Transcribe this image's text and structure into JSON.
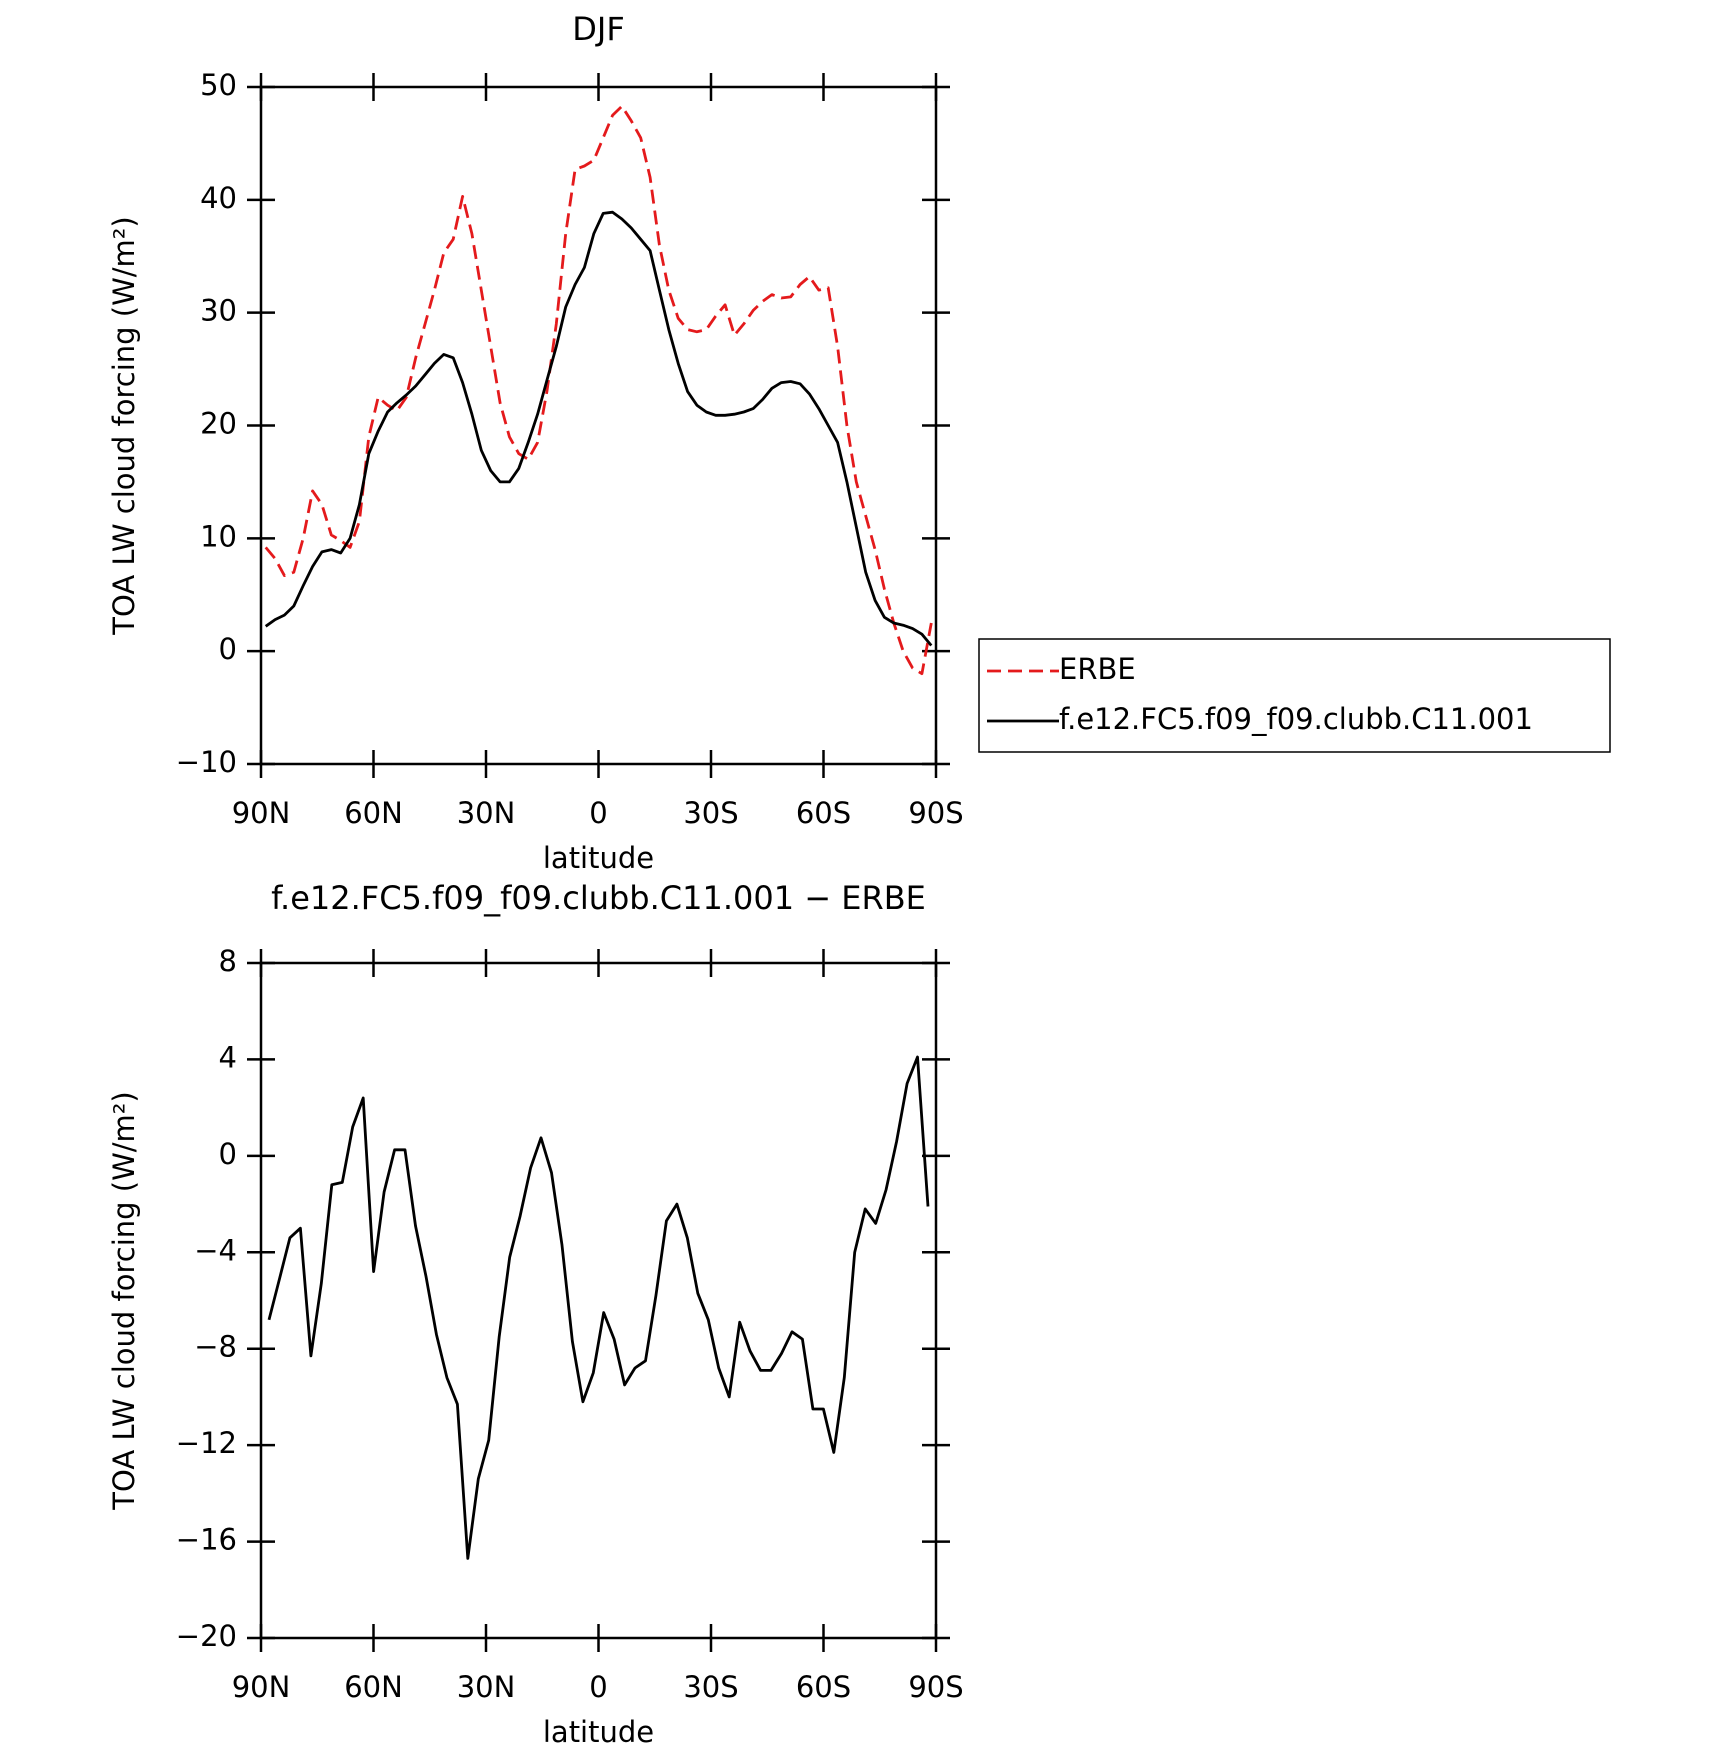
{
  "chart_data": [
    {
      "type": "line",
      "title": "DJF",
      "xlabel": "latitude",
      "ylabel": "TOA LW cloud forcing (W/m²)",
      "xlim": [
        90,
        -90
      ],
      "xticks": [
        {
          "value": 90,
          "label": "90N"
        },
        {
          "value": 60,
          "label": "60N"
        },
        {
          "value": 30,
          "label": "30N"
        },
        0,
        {
          "value": -30,
          "label": "30S"
        },
        {
          "value": -60,
          "label": "60S"
        },
        {
          "value": -90,
          "label": "90S"
        }
      ],
      "ylim": [
        -10,
        50
      ],
      "yticks": [
        {
          "value": -10,
          "label": "−10"
        },
        0,
        10,
        20,
        30,
        40,
        50
      ],
      "legend_position": "right",
      "x": [
        88.75,
        86.25,
        83.75,
        81.25,
        78.75,
        76.25,
        73.75,
        71.25,
        68.75,
        66.25,
        63.75,
        61.25,
        58.75,
        56.25,
        53.75,
        51.25,
        48.75,
        46.25,
        43.75,
        41.25,
        38.75,
        36.25,
        33.75,
        31.25,
        28.75,
        26.25,
        23.75,
        21.25,
        18.75,
        16.25,
        13.75,
        11.25,
        8.75,
        6.25,
        3.75,
        1.25,
        -1.25,
        -3.75,
        -6.25,
        -8.75,
        -11.25,
        -13.75,
        -16.25,
        -18.75,
        -21.25,
        -23.75,
        -26.25,
        -28.75,
        -31.25,
        -33.75,
        -36.25,
        -38.75,
        -41.25,
        -43.75,
        -46.25,
        -48.75,
        -51.25,
        -53.75,
        -56.25,
        -58.75,
        -61.25,
        -63.75,
        -66.25,
        -68.75,
        -71.25,
        -73.75,
        -76.25,
        -78.75,
        -81.25,
        -83.75,
        -86.25,
        -88.75
      ],
      "series": [
        {
          "name": "ERBE",
          "color": "#e41a1c",
          "dash": true,
          "values": [
            9.2,
            8.2,
            6.7,
            7.0,
            10,
            14.2,
            13.0,
            10.3,
            9.8,
            9.2,
            11.5,
            19,
            22.5,
            21.8,
            21.3,
            22.5,
            26,
            29,
            32,
            35.3,
            36.5,
            40.3,
            37,
            32,
            27,
            22,
            19,
            17.5,
            17,
            18.5,
            23,
            29,
            37,
            42.7,
            43,
            43.5,
            45.5,
            47.5,
            48.3,
            47,
            45.5,
            42,
            36,
            32,
            29.5,
            28.5,
            28.3,
            28.5,
            29.7,
            30.7,
            28,
            29,
            30.2,
            31,
            31.6,
            31.3,
            31.4,
            32.5,
            33.2,
            32,
            32.2,
            27,
            20,
            15,
            12,
            9,
            5.5,
            2.5,
            0,
            -1.5,
            -2,
            2.5
          ]
        },
        {
          "name": "f.e12.FC5.f09_f09.clubb.C11.001",
          "color": "#000000",
          "dash": false,
          "values": [
            2.2,
            2.8,
            3.2,
            4.0,
            5.8,
            7.5,
            8.8,
            9.0,
            8.7,
            10,
            13,
            17.5,
            19.5,
            21.2,
            22,
            22.7,
            23.5,
            24.5,
            25.5,
            26.3,
            26,
            23.8,
            21,
            17.8,
            16,
            15,
            15,
            16.2,
            18.5,
            21,
            24,
            27,
            30.5,
            32.5,
            34,
            37,
            38.8,
            38.9,
            38.3,
            37.5,
            36.5,
            35.5,
            32,
            28.5,
            25.5,
            23,
            21.8,
            21.2,
            20.9,
            20.9,
            21,
            21.2,
            21.5,
            22.3,
            23.3,
            23.8,
            23.9,
            23.7,
            22.8,
            21.5,
            20,
            18.5,
            15,
            11,
            7,
            4.5,
            3,
            2.5,
            2.3,
            2.0,
            1.5,
            0.5
          ]
        }
      ]
    },
    {
      "type": "line",
      "title": "f.e12.FC5.f09_f09.clubb.C11.001 − ERBE",
      "xlabel": "latitude",
      "ylabel": "TOA LW cloud forcing (W/m²)",
      "xlim": [
        90,
        -90
      ],
      "xticks": [
        {
          "value": 90,
          "label": "90N"
        },
        {
          "value": 60,
          "label": "60N"
        },
        {
          "value": 30,
          "label": "30N"
        },
        0,
        {
          "value": -30,
          "label": "30S"
        },
        {
          "value": -60,
          "label": "60S"
        },
        {
          "value": -90,
          "label": "90S"
        }
      ],
      "ylim": [
        -20,
        8
      ],
      "yticks": [
        {
          "value": -20,
          "label": "−20"
        },
        {
          "value": -16,
          "label": "−16"
        },
        {
          "value": -12,
          "label": "−12"
        },
        {
          "value": -8,
          "label": "−8"
        },
        {
          "value": -4,
          "label": "−4"
        },
        0,
        4,
        8
      ],
      "x": [
        87.86,
        85.07,
        82.28,
        79.49,
        76.7,
        73.91,
        71.12,
        68.33,
        65.54,
        62.75,
        59.96,
        57.17,
        54.38,
        51.59,
        48.8,
        46.01,
        43.22,
        40.43,
        37.64,
        34.85,
        32.06,
        29.27,
        26.48,
        23.69,
        20.9,
        18.11,
        15.32,
        12.53,
        9.74,
        6.95,
        4.17,
        1.38,
        -1.38,
        -4.17,
        -6.95,
        -9.74,
        -12.53,
        -15.32,
        -18.11,
        -20.9,
        -23.69,
        -26.48,
        -29.27,
        -32.06,
        -34.85,
        -37.64,
        -40.43,
        -43.22,
        -46.01,
        -48.8,
        -51.59,
        -54.38,
        -57.17,
        -59.96,
        -62.75,
        -65.54,
        -68.33,
        -71.12,
        -73.91,
        -76.7,
        -79.49,
        -82.28,
        -85.07,
        -87.86
      ],
      "series": [
        {
          "name": "f.e12.FC5.f09_f09.clubb.C11.001 − ERBE",
          "color": "#000000",
          "dash": false,
          "values": [
            -6.8,
            -5.1,
            -3.4,
            -3.0,
            -8.3,
            -5.3,
            -1.2,
            -1.1,
            1.2,
            2.4,
            -4.8,
            -1.5,
            0.25,
            0.25,
            -2.9,
            -5.0,
            -7.4,
            -9.2,
            -10.3,
            -16.7,
            -13.4,
            -11.8,
            -7.5,
            -4.2,
            -2.5,
            -0.5,
            0.75,
            -0.7,
            -3.7,
            -7.7,
            -10.2,
            -9.0,
            -6.5,
            -7.6,
            -9.5,
            -8.8,
            -8.5,
            -5.8,
            -2.7,
            -2.0,
            -3.4,
            -5.7,
            -6.8,
            -8.8,
            -10.0,
            -6.9,
            -8.1,
            -8.9,
            -8.9,
            -8.2,
            -7.3,
            -7.6,
            -10.5,
            -10.5,
            -12.3,
            -9.2,
            -4.0,
            -2.2,
            -2.8,
            -1.4,
            0.6,
            3.0,
            4.1,
            -2.1
          ]
        }
      ]
    }
  ]
}
